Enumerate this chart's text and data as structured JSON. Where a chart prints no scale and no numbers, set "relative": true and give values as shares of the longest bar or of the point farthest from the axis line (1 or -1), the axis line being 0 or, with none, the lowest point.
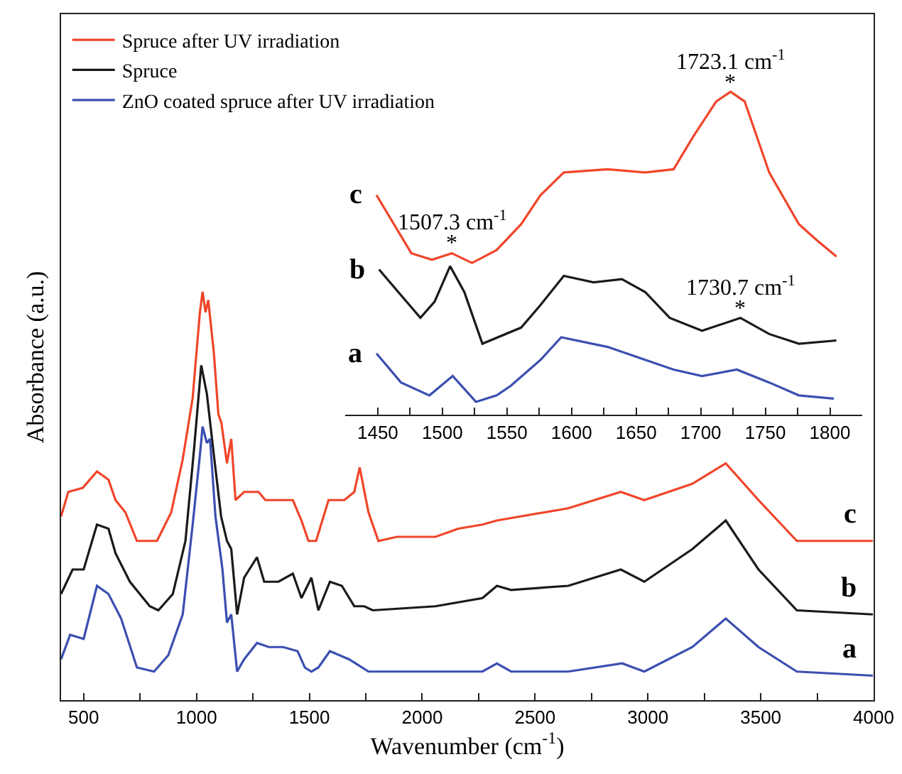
{
  "chart_data": [
    {
      "type": "line",
      "xlabel": "Wavenumber (cm$^{-1}$)",
      "ylabel": "Absorbance (a.u.)",
      "relative": true,
      "legend": "top left",
      "marker": "none",
      "line_style": "solid",
      "grid": false,
      "xlim": [
        400,
        4000
      ],
      "xticks": [
        500,
        {
          "value": 750,
          "label": null
        },
        1000,
        {
          "value": 1250,
          "label": null
        },
        1500,
        {
          "value": 1750,
          "label": null
        },
        2000,
        {
          "value": 2250,
          "label": null
        },
        2500,
        {
          "value": 2750,
          "label": null
        },
        3000,
        {
          "value": 3250,
          "label": null
        },
        3500,
        {
          "value": 3750,
          "label": null
        },
        4000
      ],
      "annotations": [
        "c",
        "b",
        "a"
      ],
      "series": [
        {
          "name": "Spruce after UV irradiation",
          "color": "#f0452a",
          "x": [
            400,
            432,
            496,
            559,
            610,
            641,
            685,
            736,
            825,
            888,
            939,
            983,
            1015,
            1027,
            1040,
            1052,
            1077,
            1097,
            1110,
            1135,
            1154,
            1173,
            1211,
            1275,
            1305,
            1363,
            1427,
            1465,
            1496,
            1530,
            1585,
            1655,
            1699,
            1723,
            1762,
            1806,
            1888,
            2059,
            2160,
            2267,
            2331,
            2647,
            2880,
            2984,
            3197,
            3345,
            3490,
            3660,
            3997
          ],
          "values": [
            0.45,
            0.51,
            0.52,
            0.56,
            0.54,
            0.49,
            0.46,
            0.39,
            0.39,
            0.46,
            0.59,
            0.74,
            0.95,
            1.0,
            0.95,
            0.98,
            0.85,
            0.7,
            0.68,
            0.58,
            0.64,
            0.49,
            0.51,
            0.51,
            0.49,
            0.49,
            0.49,
            0.44,
            0.39,
            0.39,
            0.49,
            0.49,
            0.51,
            0.57,
            0.46,
            0.39,
            0.4,
            0.4,
            0.42,
            0.43,
            0.44,
            0.47,
            0.51,
            0.49,
            0.53,
            0.58,
            0.49,
            0.39,
            0.39
          ]
        },
        {
          "name": "Spruce",
          "color": "#1a1a1a",
          "x": [
            400,
            451,
            500,
            559,
            610,
            641,
            705,
            793,
            831,
            895,
            951,
            990,
            1021,
            1046,
            1077,
            1109,
            1135,
            1154,
            1180,
            1211,
            1268,
            1300,
            1363,
            1427,
            1465,
            1509,
            1540,
            1591,
            1644,
            1699,
            1743,
            1781,
            2059,
            2267,
            2331,
            2394,
            2647,
            2880,
            2984,
            3197,
            3345,
            3490,
            3660,
            3997
          ],
          "values": [
            0.26,
            0.32,
            0.32,
            0.43,
            0.42,
            0.36,
            0.29,
            0.23,
            0.22,
            0.26,
            0.39,
            0.62,
            0.82,
            0.75,
            0.6,
            0.45,
            0.39,
            0.37,
            0.21,
            0.3,
            0.35,
            0.29,
            0.29,
            0.31,
            0.25,
            0.3,
            0.22,
            0.29,
            0.28,
            0.23,
            0.23,
            0.22,
            0.23,
            0.25,
            0.28,
            0.27,
            0.28,
            0.32,
            0.29,
            0.37,
            0.44,
            0.32,
            0.22,
            0.21
          ]
        },
        {
          "name": "ZnO coated spruce after UV irradiation",
          "color": "#3b4fb0",
          "x": [
            400,
            440,
            500,
            559,
            610,
            666,
            736,
            812,
            875,
            939,
            983,
            1015,
            1027,
            1046,
            1060,
            1084,
            1115,
            1135,
            1154,
            1180,
            1211,
            1268,
            1321,
            1384,
            1448,
            1480,
            1509,
            1540,
            1591,
            1676,
            1762,
            2059,
            2267,
            2331,
            2394,
            2647,
            2886,
            2984,
            3197,
            3345,
            3490,
            3660,
            3997
          ],
          "values": [
            0.1,
            0.16,
            0.15,
            0.28,
            0.26,
            0.2,
            0.08,
            0.07,
            0.11,
            0.21,
            0.43,
            0.6,
            0.67,
            0.63,
            0.64,
            0.45,
            0.32,
            0.19,
            0.21,
            0.07,
            0.1,
            0.14,
            0.13,
            0.13,
            0.12,
            0.08,
            0.07,
            0.08,
            0.12,
            0.1,
            0.07,
            0.07,
            0.07,
            0.09,
            0.07,
            0.07,
            0.09,
            0.07,
            0.13,
            0.2,
            0.13,
            0.07,
            0.06
          ]
        }
      ]
    },
    {
      "type": "line",
      "relative": true,
      "legend": false,
      "marker": "none",
      "line_style": "solid",
      "grid": false,
      "xlim": [
        1425,
        1825
      ],
      "xticks": [
        1450,
        {
          "value": 1475,
          "label": null
        },
        1500,
        {
          "value": 1525,
          "label": null
        },
        1550,
        {
          "value": 1575,
          "label": null
        },
        1600,
        {
          "value": 1625,
          "label": null
        },
        1650,
        {
          "value": 1675,
          "label": null
        },
        1700,
        {
          "value": 1725,
          "label": null
        },
        1750,
        {
          "value": 1775,
          "label": null
        },
        1800
      ],
      "annotations": [
        "c",
        "b",
        "a",
        {
          "text": "*",
          "x": 1723.1,
          "y": 1.0
        },
        {
          "text": "1723.1 cm$^{-1}$",
          "x": 1723.1,
          "y": 1.0
        },
        {
          "text": "*",
          "x": 1507.3,
          "y": 0.5
        },
        {
          "text": "1507.3 cm$^{-1}$",
          "x": 1507.3,
          "y": 0.5
        },
        {
          "text": "*",
          "x": 1730.7,
          "y": 0.3
        },
        {
          "text": "1730.7 cm$^{-1}$",
          "x": 1730.7,
          "y": 0.3
        }
      ],
      "series": [
        {
          "color": "#f0452a",
          "x": [
            1449,
            1476,
            1492,
            1507.3,
            1523,
            1542,
            1561,
            1576,
            1594,
            1628,
            1657,
            1679,
            1694,
            1712,
            1723.1,
            1734,
            1753,
            1776,
            1790,
            1805
          ],
          "values": [
            0.68,
            0.5,
            0.48,
            0.5,
            0.47,
            0.51,
            0.59,
            0.68,
            0.75,
            0.76,
            0.75,
            0.76,
            0.86,
            0.97,
            1.0,
            0.97,
            0.75,
            0.59,
            0.54,
            0.49
          ]
        },
        {
          "color": "#1a1a1a",
          "x": [
            1451,
            1468,
            1483,
            1494,
            1506,
            1517,
            1531,
            1561,
            1576,
            1594,
            1617,
            1639,
            1657,
            1676,
            1701,
            1730.7,
            1753,
            1776,
            1805
          ],
          "values": [
            0.45,
            0.37,
            0.3,
            0.35,
            0.46,
            0.38,
            0.22,
            0.27,
            0.34,
            0.43,
            0.41,
            0.42,
            0.38,
            0.3,
            0.26,
            0.3,
            0.25,
            0.22,
            0.23
          ]
        },
        {
          "color": "#3b4fb0",
          "x": [
            1449,
            1468,
            1490,
            1508,
            1526,
            1542,
            1553,
            1576,
            1592,
            1628,
            1657,
            1679,
            1701,
            1728,
            1753,
            1776,
            1803
          ],
          "values": [
            0.19,
            0.1,
            0.06,
            0.12,
            0.04,
            0.06,
            0.09,
            0.17,
            0.24,
            0.21,
            0.17,
            0.14,
            0.12,
            0.14,
            0.1,
            0.06,
            0.05
          ]
        }
      ]
    }
  ]
}
